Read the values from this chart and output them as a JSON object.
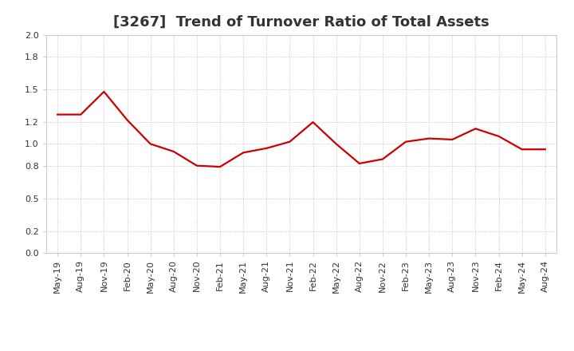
{
  "title": "[3267]  Trend of Turnover Ratio of Total Assets",
  "x_labels": [
    "May-19",
    "Aug-19",
    "Nov-19",
    "Feb-20",
    "May-20",
    "Aug-20",
    "Nov-20",
    "Feb-21",
    "May-21",
    "Aug-21",
    "Nov-21",
    "Feb-22",
    "May-22",
    "Aug-22",
    "Nov-22",
    "Feb-23",
    "May-23",
    "Aug-23",
    "Nov-23",
    "Feb-24",
    "May-24",
    "Aug-24"
  ],
  "y_values": [
    1.27,
    1.27,
    1.48,
    1.22,
    1.0,
    0.93,
    0.8,
    0.79,
    0.92,
    0.96,
    1.02,
    1.2,
    1.0,
    0.82,
    0.86,
    1.02,
    1.05,
    1.04,
    1.14,
    1.07,
    0.95,
    0.95
  ],
  "line_color": "#cc0000",
  "line_width": 1.6,
  "ylim": [
    0.0,
    2.0
  ],
  "yticks": [
    0.0,
    0.2,
    0.5,
    0.8,
    1.0,
    1.2,
    1.5,
    1.8,
    2.0
  ],
  "grid_color": "#bbbbbb",
  "background_color": "#ffffff",
  "title_fontsize": 13,
  "tick_fontsize": 8,
  "title_color": "#333333"
}
